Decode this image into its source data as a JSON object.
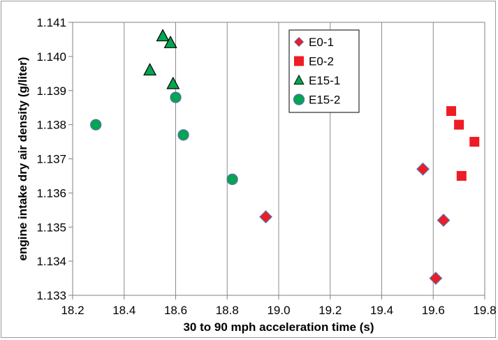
{
  "chart_data": {
    "type": "scatter",
    "title": "",
    "xlabel": "30 to 90 mph acceleration time (s)",
    "ylabel": "engine intake dry air density (g/liter)",
    "xlim": [
      18.2,
      19.8
    ],
    "ylim": [
      1.133,
      1.141
    ],
    "x_ticks": [
      "18.2",
      "18.4",
      "18.6",
      "18.8",
      "19.0",
      "19.2",
      "19.4",
      "19.6",
      "19.8"
    ],
    "y_ticks": [
      "1.133",
      "1.134",
      "1.135",
      "1.136",
      "1.137",
      "1.138",
      "1.139",
      "1.140",
      "1.141"
    ],
    "grid": {
      "x": true,
      "y": false
    },
    "legend_position": "top-right",
    "series": [
      {
        "name": "E0-1",
        "marker": "diamond",
        "color": "#ee1c24",
        "points": [
          [
            18.95,
            1.1353
          ],
          [
            19.56,
            1.1367
          ],
          [
            19.64,
            1.1352
          ],
          [
            19.61,
            1.1335
          ]
        ]
      },
      {
        "name": "E0-2",
        "marker": "square",
        "color": "#ee1c24",
        "points": [
          [
            19.67,
            1.1384
          ],
          [
            19.7,
            1.138
          ],
          [
            19.76,
            1.1375
          ],
          [
            19.71,
            1.1365
          ]
        ]
      },
      {
        "name": "E15-1",
        "marker": "triangle",
        "color": "#00a651",
        "points": [
          [
            18.55,
            1.1406
          ],
          [
            18.58,
            1.1404
          ],
          [
            18.5,
            1.1396
          ],
          [
            18.59,
            1.1392
          ]
        ]
      },
      {
        "name": "E15-2",
        "marker": "circle",
        "color": "#00a651",
        "points": [
          [
            18.29,
            1.138
          ],
          [
            18.6,
            1.1388
          ],
          [
            18.63,
            1.1377
          ],
          [
            18.82,
            1.1364
          ]
        ]
      }
    ]
  }
}
